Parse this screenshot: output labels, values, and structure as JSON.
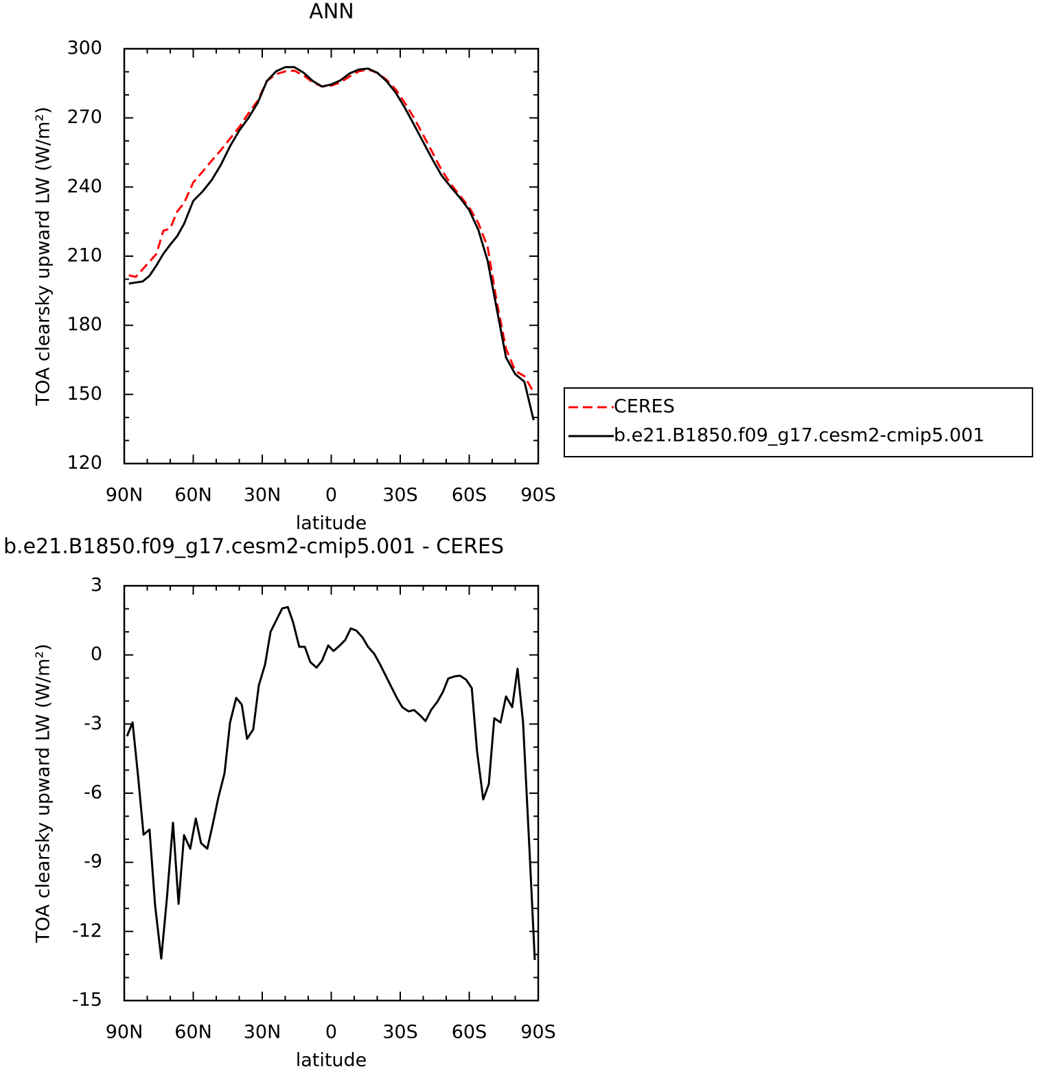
{
  "chart_data": [
    {
      "type": "line",
      "title": "ANN",
      "xlabel": "latitude",
      "ylabel": "TOA clearsky upward LW (W/m²)",
      "x": [
        88,
        85,
        82,
        79,
        76,
        73,
        70,
        67,
        64,
        60,
        56,
        52,
        48,
        44,
        40,
        36,
        32,
        28,
        24,
        20,
        16,
        12,
        8,
        4,
        0,
        -4,
        -8,
        -12,
        -16,
        -20,
        -24,
        -28,
        -32,
        -36,
        -40,
        -44,
        -48,
        -52,
        -56,
        -60,
        -64,
        -68,
        -72,
        -76,
        -80,
        -84,
        -88
      ],
      "series": [
        {
          "name": "CERES",
          "color": "#ff0000",
          "dashed": true,
          "values": [
            201.7,
            201,
            204.3,
            207.6,
            211,
            221,
            222,
            229.4,
            233,
            242,
            246.6,
            251.4,
            256,
            261,
            266,
            272,
            277.4,
            286,
            289,
            290.2,
            290.5,
            288.4,
            285.4,
            283.6,
            284,
            285.4,
            288,
            290.2,
            291,
            289.6,
            286.6,
            282.4,
            276.5,
            270,
            262.5,
            255,
            247.3,
            241.3,
            236.2,
            231.2,
            224.3,
            214,
            190,
            169.8,
            160.2,
            157.9,
            151
          ]
        },
        {
          "name": "b.e21.B1850.f09_g17.cesm2-cmip5.001",
          "color": "#000000",
          "dashed": false,
          "values": [
            198.1,
            198.6,
            199,
            201.5,
            206,
            211,
            215,
            218.7,
            224,
            234,
            238,
            243,
            249.6,
            257.7,
            264.5,
            270,
            276.5,
            286,
            290.2,
            292,
            292,
            289.6,
            286,
            283.6,
            284.5,
            286.3,
            289.3,
            291,
            291.4,
            289.6,
            286,
            281,
            274.4,
            267,
            259.5,
            252,
            245,
            240,
            235.3,
            230,
            221.3,
            208,
            187,
            166,
            158.8,
            155.5,
            138.8
          ]
        }
      ],
      "xlim": [
        90,
        -90
      ],
      "xticks": [
        {
          "value": 90,
          "label": "90N"
        },
        {
          "value": 60,
          "label": "60N"
        },
        {
          "value": 30,
          "label": "30N"
        },
        0,
        {
          "value": -30,
          "label": "30S"
        },
        {
          "value": -60,
          "label": "60S"
        },
        {
          "value": -90,
          "label": "90S"
        }
      ],
      "ylim": [
        120,
        300
      ],
      "yticks": [
        120,
        150,
        180,
        210,
        240,
        270,
        300
      ],
      "legend": "right"
    },
    {
      "type": "line",
      "title": "b.e21.B1850.f09_g17.cesm2-cmip5.001 - CERES",
      "xlabel": "latitude",
      "ylabel": "TOA clearsky upward LW (W/m²)",
      "x": [
        88.8,
        86.4,
        84,
        81.6,
        79,
        76.6,
        73.9,
        71.5,
        68.8,
        66.4,
        64,
        61.3,
        58.9,
        56.6,
        53.9,
        51.5,
        49.1,
        46.4,
        44,
        41.3,
        38.9,
        36.6,
        33.9,
        31.5,
        28.8,
        26.4,
        24,
        21.3,
        18.9,
        16.6,
        13.9,
        11.5,
        9.1,
        6.4,
        4,
        1.3,
        -1,
        -3.4,
        -6.1,
        -8.5,
        -10.9,
        -13.6,
        -16,
        -18.7,
        -21,
        -23.4,
        -26.1,
        -28.5,
        -30.9,
        -33.6,
        -36,
        -38.7,
        -41,
        -43.4,
        -46.1,
        -48.5,
        -50.9,
        -53.6,
        -56,
        -58.7,
        -61.1,
        -63.4,
        -66.1,
        -68.5,
        -70.9,
        -73.6,
        -76,
        -78.7,
        -81,
        -83.4,
        -86.1,
        -88.5
      ],
      "values": [
        -3.53,
        -2.93,
        -5.25,
        -7.8,
        -7.58,
        -10.86,
        -13.18,
        -10.6,
        -7.28,
        -10.8,
        -7.82,
        -8.41,
        -7.1,
        -8.17,
        -8.41,
        -7.34,
        -6.2,
        -5.13,
        -2.93,
        -1.86,
        -2.16,
        -3.64,
        -3.23,
        -1.32,
        -0.43,
        1,
        1.48,
        2.02,
        2.08,
        1.42,
        0.35,
        0.35,
        -0.31,
        -0.55,
        -0.25,
        0.41,
        0.17,
        0.38,
        0.65,
        1.15,
        1.06,
        0.76,
        0.35,
        0.05,
        -0.37,
        -0.84,
        -1.38,
        -1.86,
        -2.27,
        -2.45,
        -2.39,
        -2.63,
        -2.87,
        -2.39,
        -2.04,
        -1.62,
        -1.02,
        -0.93,
        -0.9,
        -1.08,
        -1.44,
        -4.18,
        -6.27,
        -5.61,
        -2.75,
        -2.93,
        -1.8,
        -2.27,
        -0.6,
        -2.93,
        -8.23,
        -13.24
      ],
      "color": "#000000",
      "xlim": [
        90,
        -90
      ],
      "xticks": [
        {
          "value": 90,
          "label": "90N"
        },
        {
          "value": 60,
          "label": "60N"
        },
        {
          "value": 30,
          "label": "30N"
        },
        0,
        {
          "value": -30,
          "label": "30S"
        },
        {
          "value": -60,
          "label": "60S"
        },
        {
          "value": -90,
          "label": "90S"
        }
      ],
      "ylim": [
        -15,
        3
      ],
      "yticks": [
        -15,
        -12,
        -9,
        -6,
        -3,
        0,
        3
      ]
    }
  ]
}
